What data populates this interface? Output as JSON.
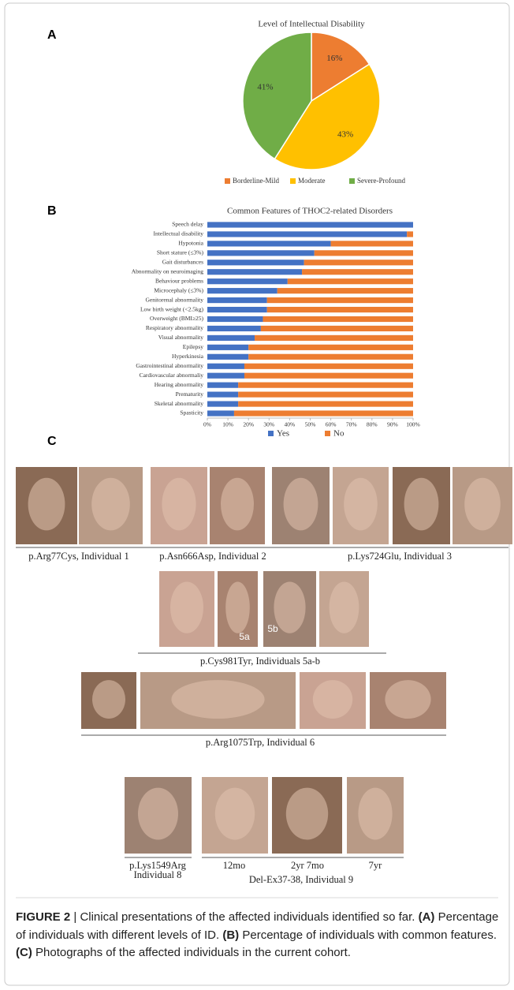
{
  "panel_labels": [
    "A",
    "B",
    "C"
  ],
  "chart_data": [
    {
      "type": "pie",
      "title": "Level of Intellectual Disability",
      "categories": [
        "Borderline-Mild",
        "Moderate",
        "Severe-Profound"
      ],
      "values": [
        16,
        43,
        41
      ],
      "value_labels": [
        "16%",
        "43%",
        "41%"
      ],
      "colors": [
        "#ed7d31",
        "#ffc000",
        "#70ad47"
      ],
      "legend": "bottom"
    },
    {
      "type": "stacked-bar-horizontal",
      "title": "Common Features of THOC2-related Disorders",
      "categories": [
        "Speech delay",
        "Intellectual disability",
        "Hypotonia",
        "Short stature (≤3%)",
        "Gait disturbances",
        "Abnormality on neuroimaging",
        "Behaviour problems",
        "Microcephaly (≤3%)",
        "Genitorenal abnormality",
        "Low birth weight (<2.5kg)",
        "Overweight (BMI≥25)",
        "Respiratory abnormality",
        "Visual abnormality",
        "Epilepsy",
        "Hyperkinesia",
        "Gastrointestinal abnormality",
        "Cardiovascular abnormaliy",
        "Hearing abnormality",
        "Prematurity",
        "Skeletal abnormality",
        "Spasticity"
      ],
      "series": [
        {
          "name": "Yes",
          "color": "#4472c4",
          "values": [
            100,
            97,
            60,
            52,
            47,
            46,
            39,
            34,
            29,
            29,
            27,
            26,
            23,
            20,
            20,
            18,
            18,
            15,
            15,
            15,
            13
          ]
        },
        {
          "name": "No",
          "color": "#ed7d31",
          "values": [
            0,
            3,
            40,
            48,
            53,
            54,
            61,
            66,
            71,
            71,
            73,
            74,
            77,
            80,
            80,
            82,
            82,
            85,
            85,
            85,
            87
          ]
        }
      ],
      "xlim": [
        0,
        100
      ],
      "xticks": [
        {
          "value": 0,
          "label": "0%"
        },
        {
          "value": 10,
          "label": "10%"
        },
        {
          "value": 20,
          "label": "20%"
        },
        {
          "value": 30,
          "label": "30%"
        },
        {
          "value": 40,
          "label": "40%"
        },
        {
          "value": 50,
          "label": "50%"
        },
        {
          "value": 60,
          "label": "60%"
        },
        {
          "value": 70,
          "label": "70%"
        },
        {
          "value": 80,
          "label": "80%"
        },
        {
          "value": 90,
          "label": "90%"
        },
        {
          "value": 100,
          "label": "100%"
        }
      ],
      "legend": "bottom"
    }
  ],
  "photos": {
    "captions": [
      "p.Arg77Cys, Individual 1",
      "p.Asn666Asp, Individual 2",
      "p.Lys724Glu, Individual 3",
      "p.Cys981Tyr, Individuals 5a-b",
      "p.Arg1075Trp, Individual 6",
      "p.Lys1549Arg",
      "Individual 8",
      "Del-Ex37-38, Individual 9"
    ],
    "sublabels": [
      "5a",
      "5b"
    ],
    "age_labels": [
      "12mo",
      "2yr 7mo",
      "7yr"
    ]
  },
  "caption": {
    "figure": "FIGURE 2",
    "separator": "|",
    "text": "Clinical presentations of the affected individuals identified so far.",
    "items": [
      {
        "label": "(A)",
        "text": "Percentage of individuals with different levels of ID."
      },
      {
        "label": "(B)",
        "text": "Percentage of individuals with common features."
      },
      {
        "label": "(C)",
        "text": "Photographs of the affected individuals in the current cohort."
      }
    ]
  }
}
